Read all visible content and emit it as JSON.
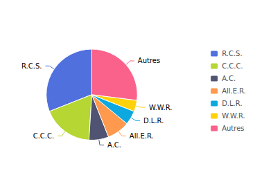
{
  "chart_data": {
    "type": "pie",
    "categories": [
      "R.C.S.",
      "C.C.C.",
      "A.C.",
      "All.E.R.",
      "D.L.R.",
      "W.W.R.",
      "Autres"
    ],
    "values": [
      31,
      18,
      7,
      8,
      5,
      4,
      27
    ],
    "legend": "right"
  }
}
